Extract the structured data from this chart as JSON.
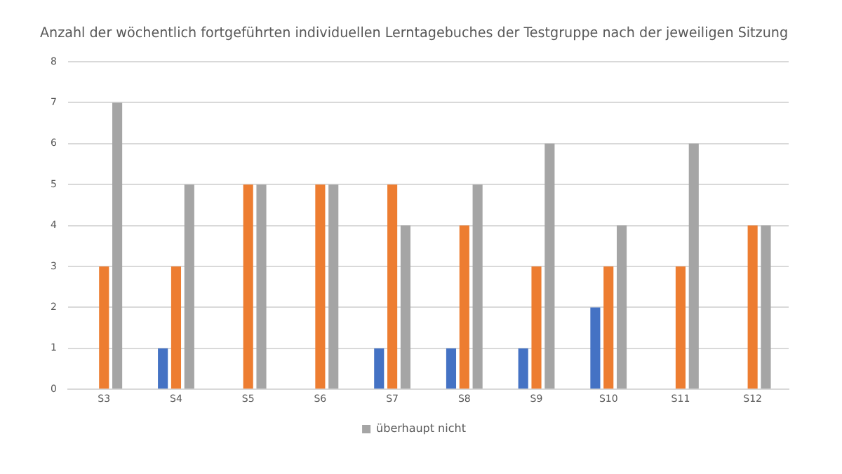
{
  "chart_data": {
    "type": "bar",
    "title": "Anzahl der wöchentlich fortgeführten individuellen Lerntagebuches der Testgruppe nach der jeweiligen Sitzung",
    "categories": [
      "S3",
      "S4",
      "S5",
      "S6",
      "S7",
      "S8",
      "S9",
      "S10",
      "S11",
      "S12"
    ],
    "series": [
      {
        "color": "#4472c4",
        "values": [
          0,
          1,
          0,
          0,
          1,
          1,
          1,
          2,
          0,
          0
        ]
      },
      {
        "color": "#ed7d31",
        "values": [
          3,
          3,
          5,
          5,
          5,
          4,
          3,
          3,
          3,
          4
        ]
      },
      {
        "name": "überhaupt nicht",
        "color": "#a5a5a5",
        "values": [
          7,
          5,
          5,
          5,
          4,
          5,
          6,
          4,
          6,
          4
        ]
      }
    ],
    "ylim": [
      0,
      8
    ],
    "yticks": [
      0,
      1,
      2,
      3,
      4,
      5,
      6,
      7,
      8
    ],
    "grid": "y",
    "legend": "bottom"
  }
}
